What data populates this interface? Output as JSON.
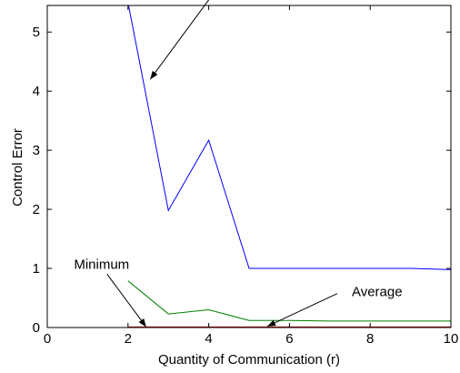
{
  "chart_data": {
    "type": "line",
    "title": "",
    "xlabel": "Quantity of Communication (r)",
    "ylabel": "Control Error",
    "xlim": [
      0,
      10
    ],
    "ylim": [
      0,
      5.45
    ],
    "xticks": [
      0,
      2,
      4,
      6,
      8,
      10
    ],
    "yticks": [
      0,
      1,
      2,
      3,
      4,
      5
    ],
    "grid": false,
    "legend": "none",
    "series": [
      {
        "color": "#0000ff",
        "x": [
          2,
          3,
          4,
          5,
          6,
          7,
          8,
          9,
          10
        ],
        "y": [
          5.5,
          1.98,
          3.17,
          1.0,
          1.0,
          1.0,
          1.0,
          1.0,
          0.98
        ]
      },
      {
        "color": "#008000",
        "x": [
          2,
          3,
          4,
          5,
          6,
          7,
          8,
          9,
          10
        ],
        "y": [
          0.79,
          0.23,
          0.3,
          0.12,
          0.12,
          0.11,
          0.11,
          0.11,
          0.11
        ]
      },
      {
        "color": "#c00000",
        "x": [
          2,
          3,
          4,
          5,
          6,
          7,
          8,
          9,
          10
        ],
        "y": [
          0,
          0,
          0,
          0,
          0,
          0,
          0,
          0,
          0
        ]
      }
    ],
    "annotations": [
      {
        "text": "Maximum",
        "x": 2.55,
        "y": 4.2
      },
      {
        "text": "Average",
        "x": 5.45,
        "y": 0.02
      },
      {
        "text": "Minimum",
        "x": 2.45,
        "y": 0.01
      }
    ]
  }
}
